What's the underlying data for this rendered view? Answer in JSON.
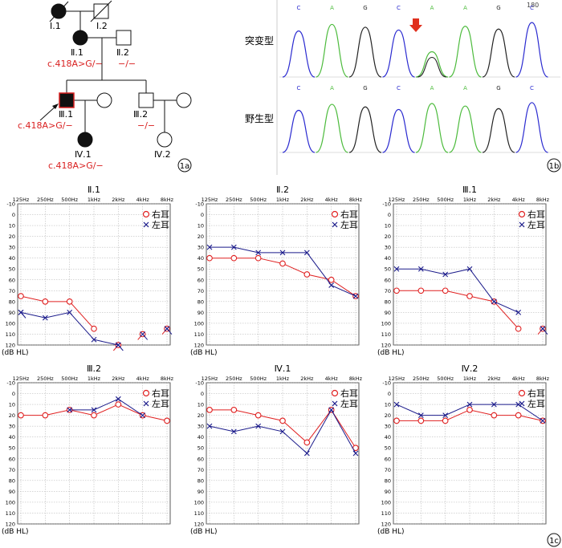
{
  "pedigree": {
    "panel_label": "1a",
    "members": [
      {
        "id": "I1",
        "label": "Ⅰ.1",
        "sex": "female",
        "affected": true,
        "deceased": true
      },
      {
        "id": "I2",
        "label": "Ⅰ.2",
        "sex": "male",
        "affected": false,
        "deceased": true
      },
      {
        "id": "II1",
        "label": "Ⅱ.1",
        "sex": "female",
        "affected": true,
        "genotype": "c.418A>G/−"
      },
      {
        "id": "II2",
        "label": "Ⅱ.2",
        "sex": "male",
        "affected": false,
        "genotype": "−/−"
      },
      {
        "id": "III1",
        "label": "Ⅲ.1",
        "sex": "male",
        "affected": true,
        "proband": true,
        "genotype": "c.418A>G/−"
      },
      {
        "id": "III1w",
        "label": "",
        "sex": "female",
        "affected": false
      },
      {
        "id": "III2",
        "label": "Ⅲ.2",
        "sex": "male",
        "affected": false,
        "genotype": "−/−"
      },
      {
        "id": "III2w",
        "label": "",
        "sex": "female",
        "affected": false
      },
      {
        "id": "IV1",
        "label": "Ⅳ.1",
        "sex": "female",
        "affected": true,
        "genotype": "c.418A>G/−"
      },
      {
        "id": "IV2",
        "label": "Ⅳ.2",
        "sex": "female",
        "affected": false
      }
    ]
  },
  "sequencing": {
    "panel_label": "1b",
    "position_label": "180",
    "mutant_label": "突变型",
    "wildtype_label": "野生型",
    "bases": [
      "C",
      "A",
      "G",
      "C",
      "A",
      "A",
      "G",
      "C"
    ],
    "colors": {
      "C": "#2a2ad0",
      "A": "#4cbb3c",
      "G": "#222222",
      "T": "#d02020"
    },
    "mutation_arrow_color": "#e0301e"
  },
  "audiograms": {
    "panel_label": "1c",
    "freq_labels": [
      "125Hz",
      "250Hz",
      "500Hz",
      "1kHz",
      "2kHz",
      "4kHz",
      "8kHz"
    ],
    "y_ticks": [
      -10,
      0,
      10,
      20,
      30,
      40,
      50,
      60,
      70,
      80,
      90,
      100,
      110,
      120
    ],
    "y_unit": "(dB HL)",
    "legend_right": "右耳",
    "legend_left": "左耳",
    "right_color": "#e02020",
    "left_color": "#1a1a8a"
  },
  "chart_data": [
    {
      "type": "line",
      "title": "Ⅱ.1",
      "x": [
        "125Hz",
        "250Hz",
        "500Hz",
        "1kHz",
        "2kHz",
        "4kHz",
        "8kHz"
      ],
      "ylim": [
        -10,
        120
      ],
      "y_inverted": true,
      "ylabel": "(dB HL)",
      "series": [
        {
          "name": "右耳",
          "values": [
            75,
            80,
            80,
            105,
            null,
            null,
            null
          ],
          "no_response_at": [
            "2kHz",
            "4kHz",
            "8kHz"
          ],
          "no_response_values": [
            120,
            110,
            105
          ]
        },
        {
          "name": "左耳",
          "values": [
            90,
            95,
            90,
            115,
            120,
            null,
            null
          ],
          "no_response_at": [
            "125Hz",
            "2kHz",
            "4kHz",
            "8kHz"
          ],
          "no_response_values": [
            90,
            120,
            110,
            105
          ]
        }
      ]
    },
    {
      "type": "line",
      "title": "Ⅱ.2",
      "x": [
        "125Hz",
        "250Hz",
        "500Hz",
        "1kHz",
        "2kHz",
        "4kHz",
        "8kHz"
      ],
      "ylim": [
        -10,
        120
      ],
      "y_inverted": true,
      "ylabel": "(dB HL)",
      "series": [
        {
          "name": "右耳",
          "values": [
            40,
            40,
            40,
            45,
            55,
            60,
            75
          ]
        },
        {
          "name": "左耳",
          "values": [
            30,
            30,
            35,
            35,
            35,
            65,
            75
          ]
        }
      ]
    },
    {
      "type": "line",
      "title": "Ⅲ.1",
      "x": [
        "125Hz",
        "250Hz",
        "500Hz",
        "1kHz",
        "2kHz",
        "4kHz",
        "8kHz"
      ],
      "ylim": [
        -10,
        120
      ],
      "y_inverted": true,
      "ylabel": "(dB HL)",
      "series": [
        {
          "name": "右耳",
          "values": [
            70,
            70,
            70,
            75,
            80,
            105,
            null
          ],
          "no_response_at": [
            "8kHz"
          ],
          "no_response_values": [
            105
          ]
        },
        {
          "name": "左耳",
          "values": [
            50,
            50,
            55,
            50,
            80,
            90,
            null
          ],
          "no_response_at": [
            "8kHz"
          ],
          "no_response_values": [
            105
          ]
        }
      ]
    },
    {
      "type": "line",
      "title": "Ⅲ.2",
      "x": [
        "125Hz",
        "250Hz",
        "500Hz",
        "1kHz",
        "2kHz",
        "4kHz",
        "8kHz"
      ],
      "ylim": [
        -10,
        120
      ],
      "y_inverted": true,
      "ylabel": "(dB HL)",
      "series": [
        {
          "name": "右耳",
          "values": [
            20,
            20,
            15,
            20,
            10,
            20,
            25
          ]
        },
        {
          "name": "左耳",
          "values": [
            null,
            null,
            15,
            15,
            5,
            20,
            null
          ]
        }
      ]
    },
    {
      "type": "line",
      "title": "Ⅳ.1",
      "x": [
        "125Hz",
        "250Hz",
        "500Hz",
        "1kHz",
        "2kHz",
        "4kHz",
        "8kHz"
      ],
      "ylim": [
        -10,
        120
      ],
      "y_inverted": true,
      "ylabel": "(dB HL)",
      "series": [
        {
          "name": "右耳",
          "values": [
            15,
            15,
            20,
            25,
            45,
            15,
            50
          ]
        },
        {
          "name": "左耳",
          "values": [
            30,
            35,
            30,
            35,
            55,
            15,
            55
          ]
        }
      ]
    },
    {
      "type": "line",
      "title": "Ⅳ.2",
      "x": [
        "125Hz",
        "250Hz",
        "500Hz",
        "1kHz",
        "2kHz",
        "4kHz",
        "8kHz"
      ],
      "ylim": [
        -10,
        120
      ],
      "y_inverted": true,
      "ylabel": "(dB HL)",
      "series": [
        {
          "name": "右耳",
          "values": [
            25,
            25,
            25,
            15,
            20,
            20,
            25
          ]
        },
        {
          "name": "左耳",
          "values": [
            10,
            20,
            20,
            10,
            10,
            10,
            25
          ]
        }
      ]
    }
  ]
}
